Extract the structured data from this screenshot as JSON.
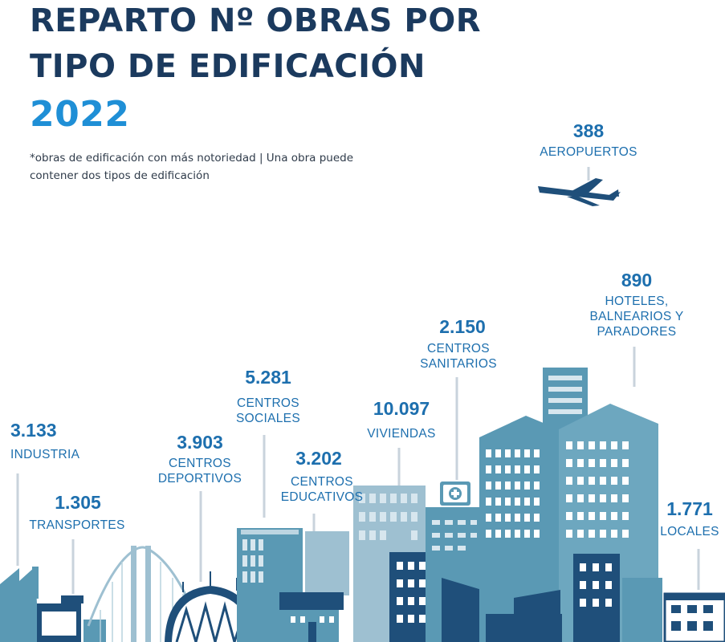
{
  "title_line1": "REPARTO Nº OBRAS POR",
  "title_line2": "TIPO DE EDIFICACIÓN",
  "title_year": "2022",
  "subtitle": "*obras de edificación con más notoriedad |  Una obra puede contener dos tipos de edificación",
  "colors": {
    "title": "#1b3a5e",
    "year": "#1f8fd6",
    "label": "#1d6fae",
    "building_light": "#5a99b4",
    "building_dark": "#1f4f7a"
  },
  "chart_data": {
    "type": "other",
    "categories": [
      {
        "value": "388",
        "label": "AEROPUERTOS",
        "icon": "airplane-icon"
      },
      {
        "value": "3.133",
        "label": "INDUSTRIA",
        "icon": "factory-icon"
      },
      {
        "value": "1.305",
        "label": "TRANSPORTES",
        "icon": "bridge-icon"
      },
      {
        "value": "3.903",
        "label": "CENTROS DEPORTIVOS",
        "icon": "stadium-icon"
      },
      {
        "value": "5.281",
        "label": "CENTROS SOCIALES",
        "icon": "office-building-icon"
      },
      {
        "value": "3.202",
        "label": "CENTROS EDUCATIVOS",
        "icon": "school-icon"
      },
      {
        "value": "10.097",
        "label": "VIVIENDAS",
        "icon": "apartment-icon"
      },
      {
        "value": "2.150",
        "label": "CENTROS SANITARIOS",
        "icon": "hospital-icon"
      },
      {
        "value": "890",
        "label": "HOTELES, BALNEARIOS Y PARADORES",
        "icon": "hotel-icon"
      },
      {
        "value": "1.771",
        "label": "LOCALES",
        "icon": "shop-icon"
      }
    ]
  }
}
